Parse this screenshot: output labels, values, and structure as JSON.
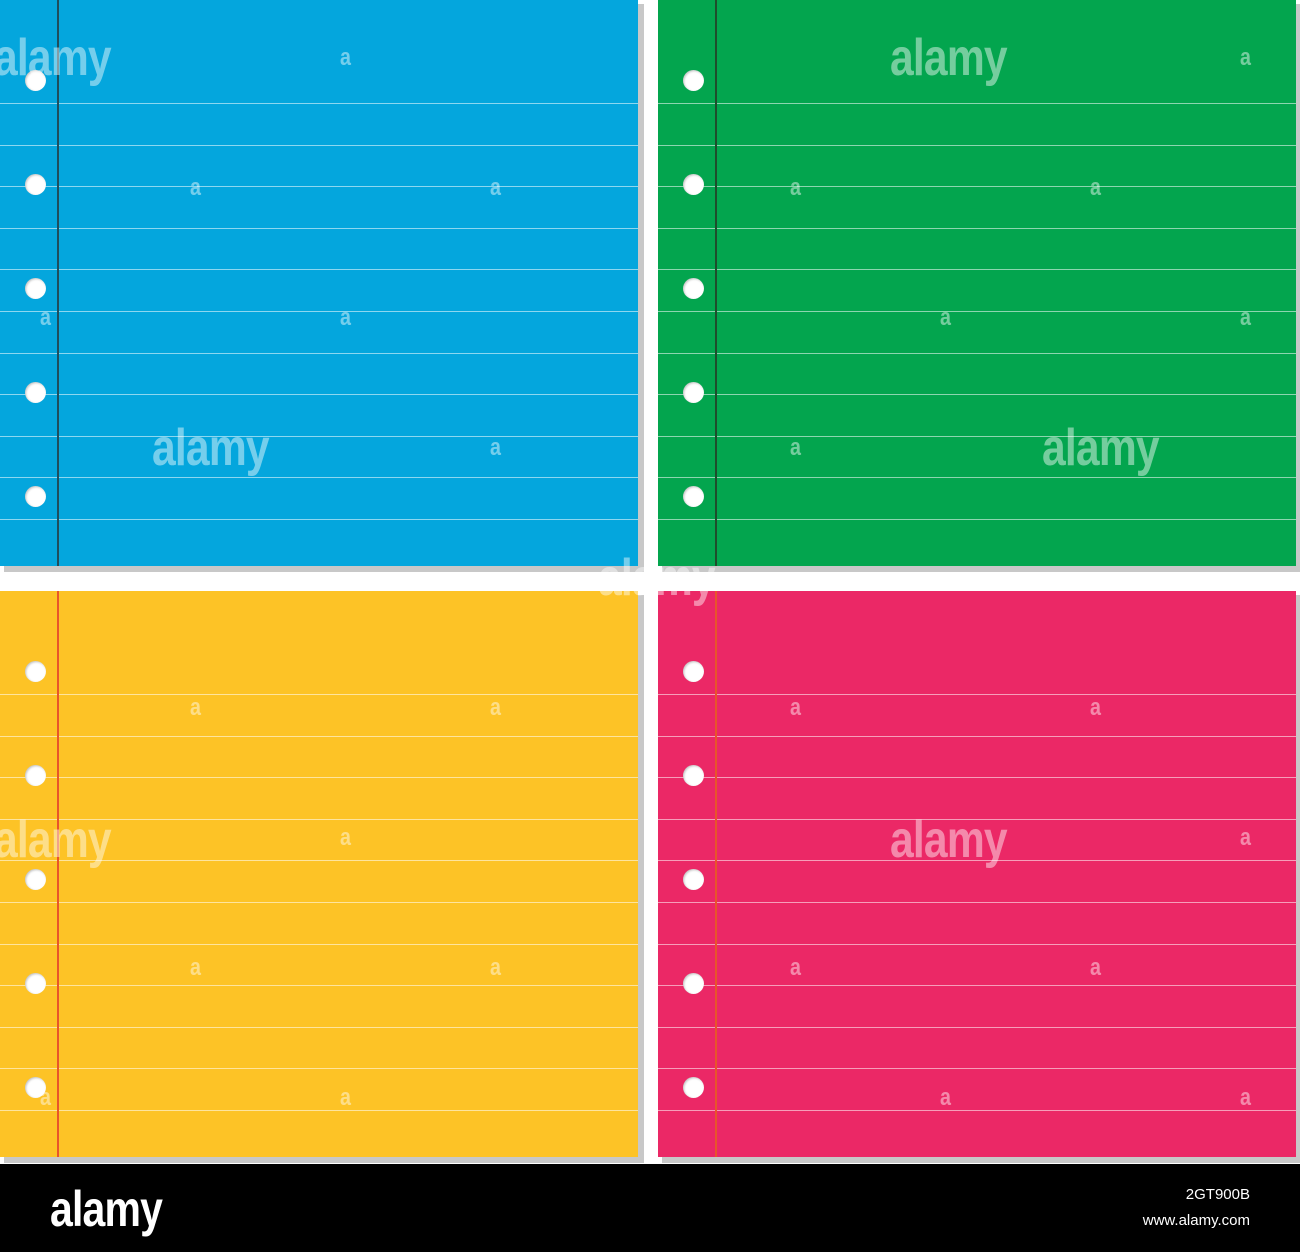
{
  "sheets": [
    {
      "name": "blue",
      "paper_color": "#04a6dd",
      "margin_line_color": "#1f4d5c"
    },
    {
      "name": "green",
      "paper_color": "#03a54e",
      "margin_line_color": "#1f4d2c"
    },
    {
      "name": "yellow",
      "paper_color": "#fdc326",
      "margin_line_color": "#e8552a"
    },
    {
      "name": "pink",
      "paper_color": "#eb2866",
      "margin_line_color": "#e8552a"
    }
  ],
  "watermark": {
    "large": "alamy",
    "small": "a"
  },
  "footer": {
    "logo": "alamy",
    "image_id": "2GT900B",
    "url": "www.alamy.com"
  },
  "colors": {
    "background": "#ffffff",
    "footer_bg": "#000000",
    "hole": "#ffffff"
  }
}
